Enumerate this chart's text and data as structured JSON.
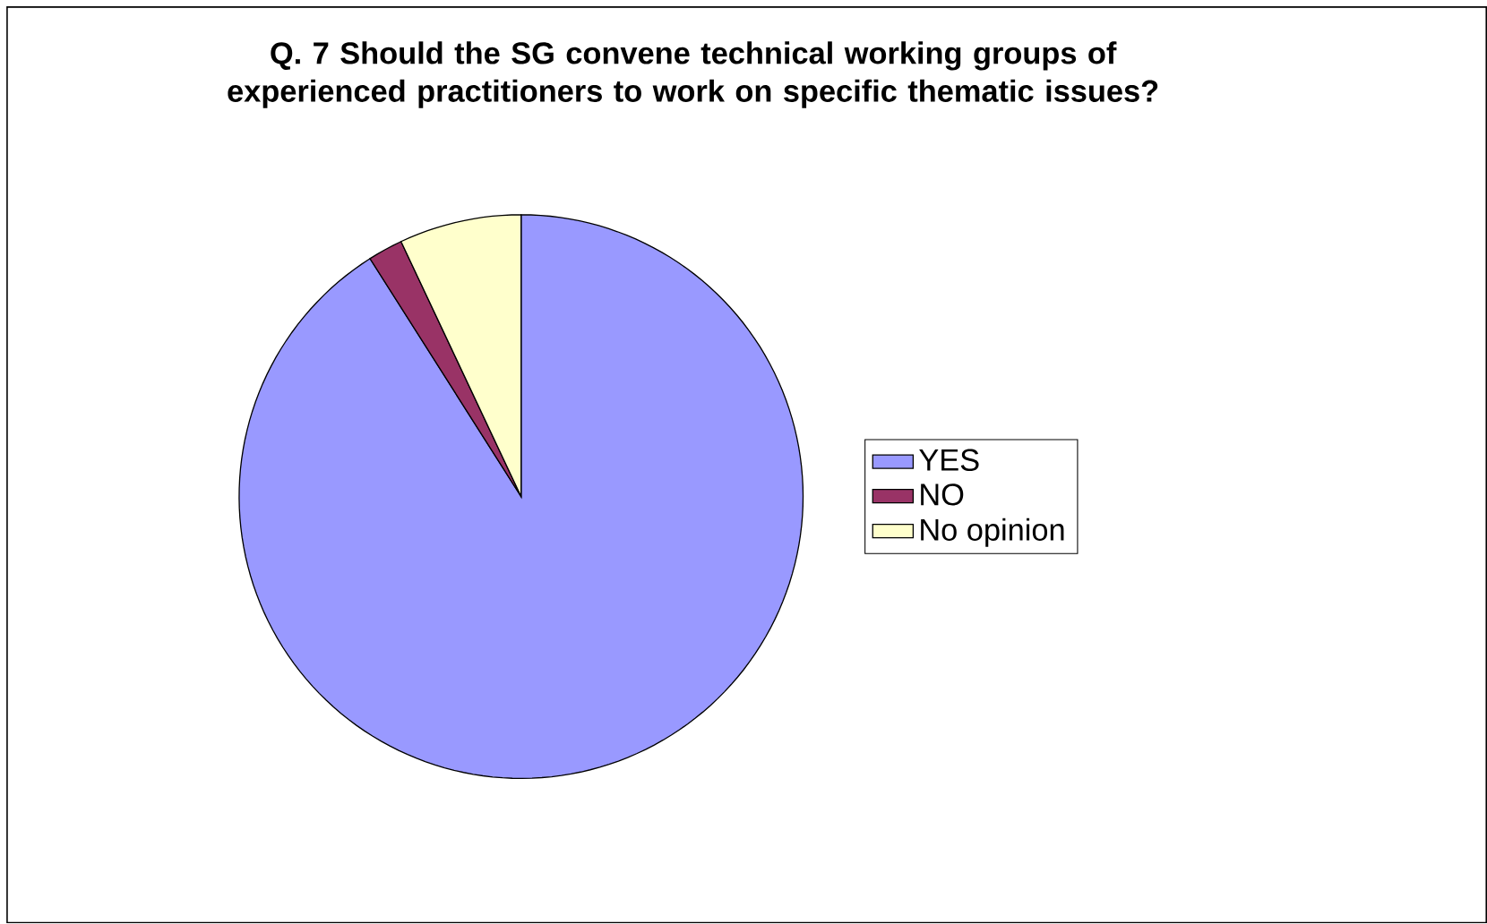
{
  "chart_data": {
    "type": "pie",
    "title": "Q. 7 Should the SG convene technical working groups of experienced practitioners to work on specific thematic issues?",
    "categories": [
      "YES",
      "NO",
      "No opinion"
    ],
    "values": [
      91,
      2,
      7
    ],
    "colors": [
      "#9999ff",
      "#993366",
      "#ffffcc"
    ],
    "legend": "right"
  }
}
